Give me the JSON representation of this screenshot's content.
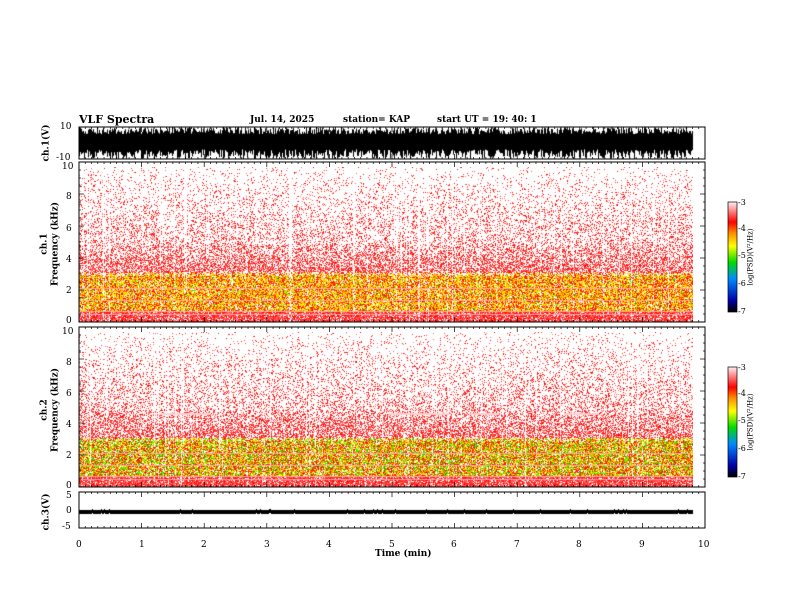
{
  "header": {
    "title": "VLF Spectra",
    "date": "Jul. 14, 2025",
    "station": "station= KAP",
    "start": "start  UT =   19: 40: 1"
  },
  "chart_data": {
    "type": "heatmap",
    "title": "VLF Spectra",
    "xlabel": "Time (min)",
    "xlim": [
      0,
      10
    ],
    "x_ticks": [
      "0",
      "1",
      "2",
      "3",
      "4",
      "5",
      "6",
      "7",
      "8",
      "9",
      "10"
    ],
    "waveform1": {
      "ylabel": "ch.1(V)",
      "ylim": [
        -10,
        10
      ],
      "ticks": [
        "10",
        "-10"
      ]
    },
    "spectrogram1": {
      "ylabel_channel": "ch.1",
      "ylabel": "Frequency (kHz)",
      "ylim": [
        0,
        10
      ],
      "ticks": [
        "0",
        "2",
        "4",
        "6",
        "8",
        "10"
      ],
      "colorbar": {
        "label": "log(PSD)(V²/Hz)",
        "range": [
          -7,
          -3
        ],
        "ticks": [
          "-3",
          "-4",
          "-5",
          "-6",
          "-7"
        ]
      }
    },
    "spectrogram2": {
      "ylabel_channel": "ch.2",
      "ylabel": "Frequency (kHz)",
      "ylim": [
        0,
        10
      ],
      "ticks": [
        "0",
        "2",
        "4",
        "6",
        "8",
        "10"
      ],
      "colorbar": {
        "label": "log(PSD)(V²/Hz)",
        "range": [
          -7,
          -3
        ],
        "ticks": [
          "-3",
          "-4",
          "-5",
          "-6",
          "-7"
        ]
      }
    },
    "waveform3": {
      "ylabel": "ch.3(V)",
      "ylim": [
        -5,
        5
      ],
      "ticks": [
        "5",
        "0",
        "-5"
      ]
    }
  }
}
